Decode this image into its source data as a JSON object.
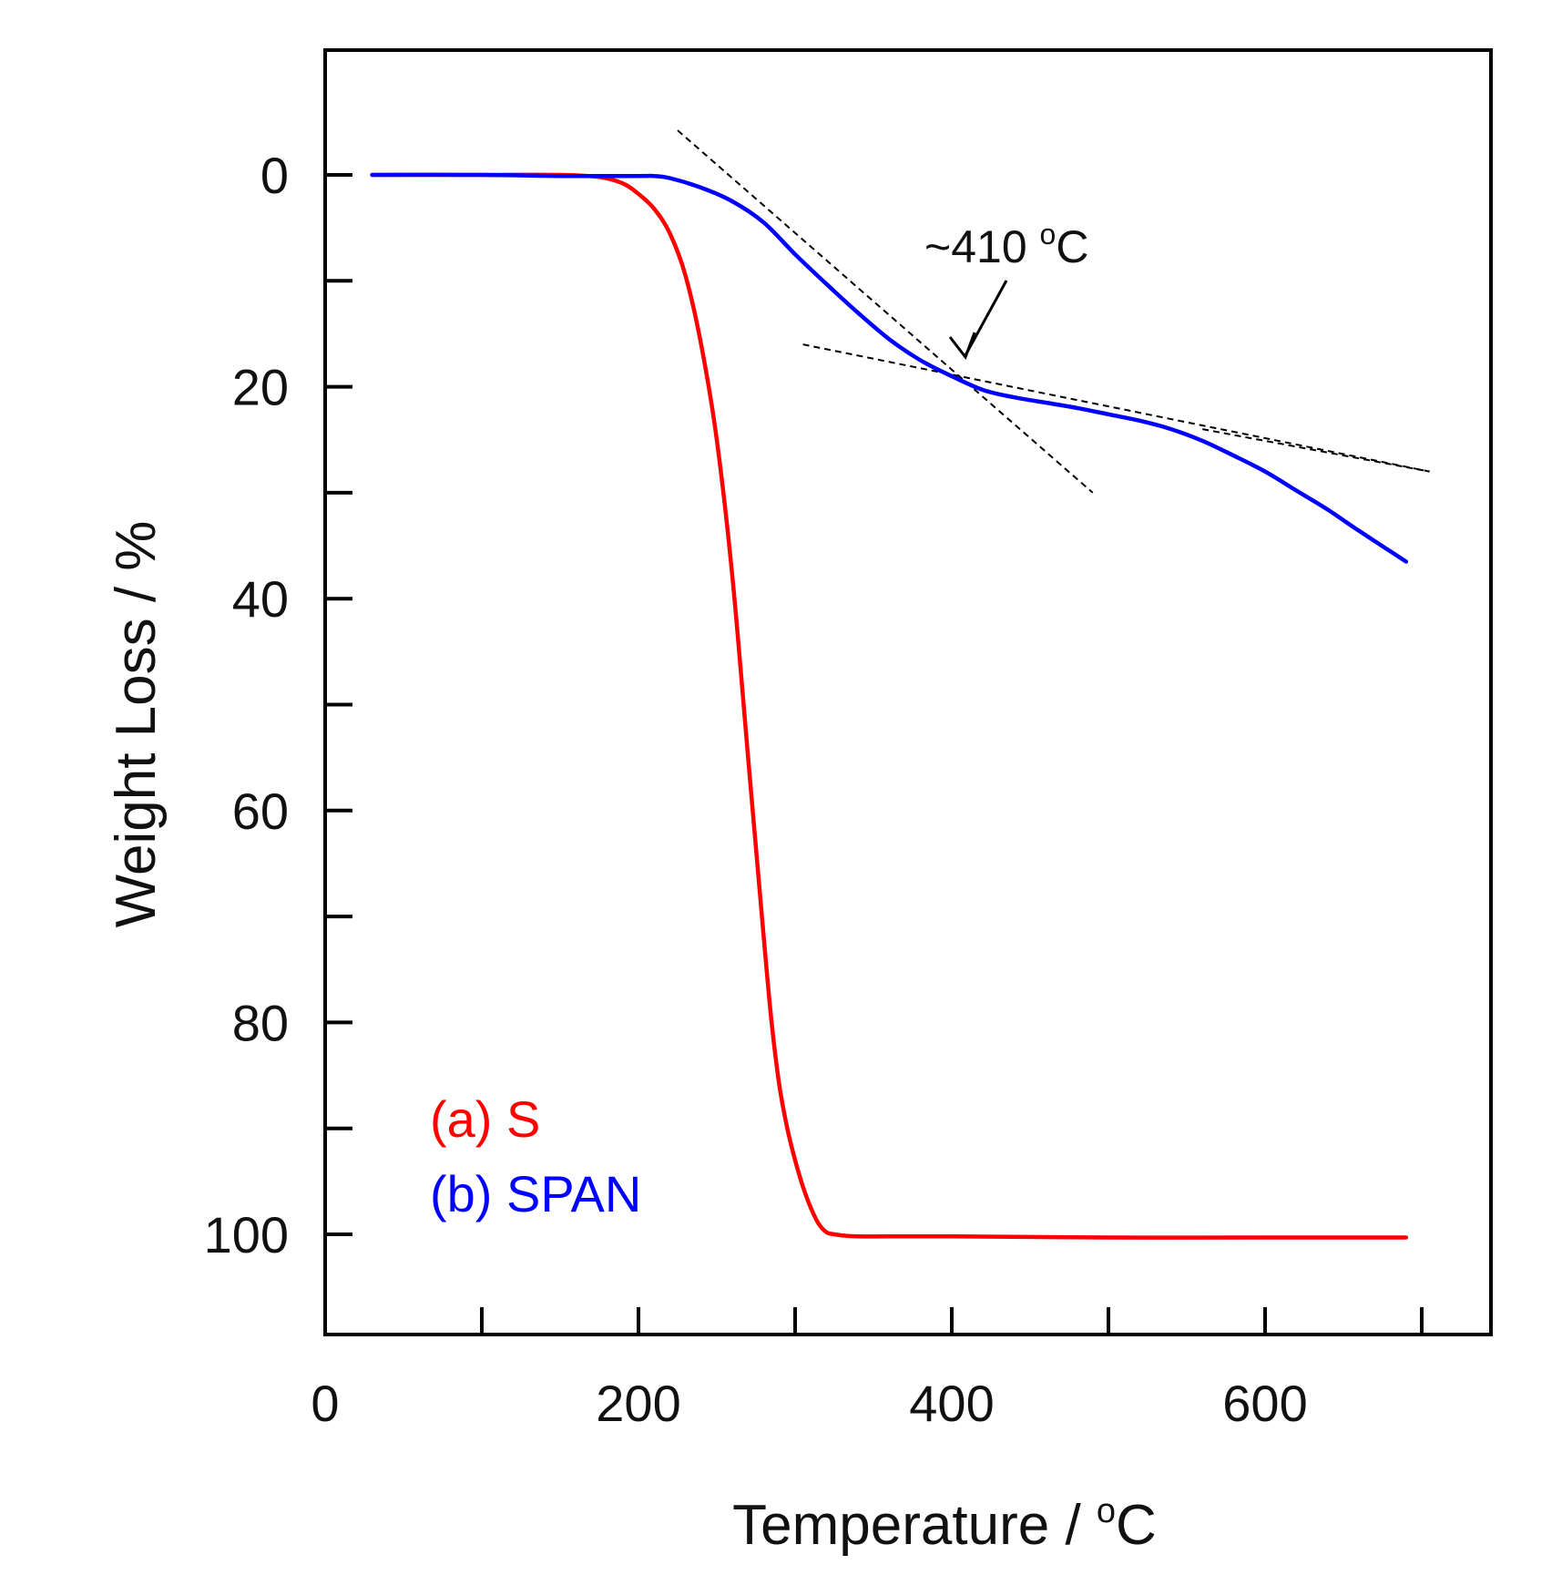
{
  "chart_data": {
    "type": "line",
    "title": "",
    "xlabel": "Temperature / ",
    "xlabel_sup": "o",
    "xlabel_unit": "C",
    "ylabel": "Weight Loss / %",
    "xlim": [
      0,
      750
    ],
    "ylim": [
      112,
      -12
    ],
    "x_ticks": [
      0,
      200,
      400,
      600
    ],
    "x_minor_ticks": [
      100,
      300,
      500,
      700
    ],
    "y_ticks": [
      0,
      20,
      40,
      60,
      80,
      100
    ],
    "y_minor_ticks": [
      10,
      30,
      50,
      70,
      90
    ],
    "grid": false,
    "legend_position": "bottom-left",
    "series": [
      {
        "name": "(a) S",
        "color": "#ff0000",
        "x": [
          30,
          100,
          150,
          175,
          190,
          200,
          210,
          220,
          230,
          240,
          250,
          260,
          270,
          280,
          285,
          290,
          295,
          300,
          305,
          310,
          315,
          320,
          325,
          330,
          340,
          360,
          400,
          500,
          600,
          690
        ],
        "y": [
          0,
          0,
          0,
          0.2,
          0.8,
          1.8,
          3.2,
          5.5,
          9.5,
          16,
          25,
          38,
          55,
          72,
          80,
          86,
          90,
          93,
          95.5,
          97.5,
          99,
          99.8,
          100,
          100.1,
          100.2,
          100.2,
          100.2,
          100.3,
          100.3,
          100.3
        ]
      },
      {
        "name": "(b) SPAN",
        "color": "#0000ff",
        "x": [
          30,
          100,
          150,
          200,
          210,
          220,
          240,
          260,
          280,
          300,
          320,
          340,
          360,
          380,
          400,
          420,
          440,
          460,
          480,
          500,
          520,
          540,
          560,
          580,
          600,
          620,
          640,
          660,
          690
        ],
        "y": [
          0,
          0,
          0.1,
          0.1,
          0.1,
          0.3,
          1.2,
          2.5,
          4.5,
          7.5,
          10.3,
          13.0,
          15.5,
          17.5,
          19.0,
          20.3,
          21.0,
          21.5,
          22.0,
          22.6,
          23.2,
          24.0,
          25.1,
          26.5,
          28.0,
          29.8,
          31.6,
          33.6,
          36.5
        ]
      }
    ],
    "tangent_lines": [
      {
        "x": [
          225,
          490
        ],
        "y": [
          -4.2,
          30
        ]
      },
      {
        "x": [
          305,
          705
        ],
        "y": [
          16,
          28
        ]
      },
      {
        "x": [
          560,
          705
        ],
        "y": [
          24,
          28
        ]
      }
    ],
    "annotations": [
      {
        "text": "~410 ",
        "sup": "o",
        "unit": "C",
        "target_x": 410,
        "target_y": 18.5
      }
    ]
  }
}
